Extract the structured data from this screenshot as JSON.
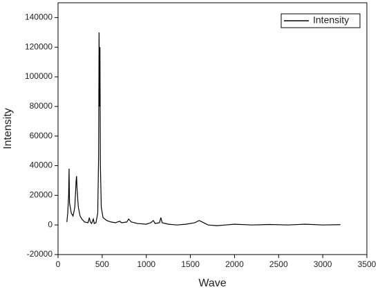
{
  "chart_data": {
    "type": "line",
    "x_label": "Wave",
    "y_label": "Intensity",
    "x": [
      100,
      110,
      120,
      125,
      130,
      150,
      170,
      190,
      205,
      210,
      215,
      230,
      250,
      270,
      300,
      340,
      355,
      365,
      380,
      400,
      410,
      430,
      450,
      460,
      465,
      470,
      475,
      480,
      490,
      510,
      550,
      600,
      650,
      700,
      720,
      780,
      800,
      830,
      900,
      1000,
      1050,
      1080,
      1100,
      1150,
      1165,
      1180,
      1250,
      1350,
      1450,
      1550,
      1600,
      1650,
      1700,
      1800,
      1900,
      2000,
      2200,
      2400,
      2600,
      2800,
      3000,
      3200
    ],
    "series": [
      {
        "name": "Intensity",
        "color": "#000000",
        "values": [
          2000,
          8000,
          20000,
          38000,
          15000,
          8000,
          6000,
          12000,
          30000,
          33000,
          25000,
          12000,
          6000,
          4000,
          2000,
          1500,
          5000,
          2000,
          1000,
          4000,
          1000,
          1500,
          8000,
          48000,
          130000,
          80000,
          120000,
          40000,
          12000,
          5000,
          3000,
          2000,
          1500,
          2500,
          1500,
          2000,
          4000,
          2000,
          1000,
          500,
          1500,
          3000,
          1000,
          1500,
          5000,
          1500,
          500,
          0,
          500,
          1500,
          3000,
          1500,
          0,
          -500,
          0,
          500,
          0,
          300,
          0,
          500,
          0,
          200
        ]
      }
    ],
    "xlim": [
      0,
      3500
    ],
    "xticks": [
      0,
      500,
      1000,
      1500,
      2000,
      2500,
      3000,
      3500
    ],
    "ylim": [
      -20000,
      150000
    ],
    "yticks": [
      -20000,
      0,
      20000,
      40000,
      60000,
      80000,
      100000,
      120000,
      140000
    ],
    "grid": false,
    "legend": "upper right"
  }
}
